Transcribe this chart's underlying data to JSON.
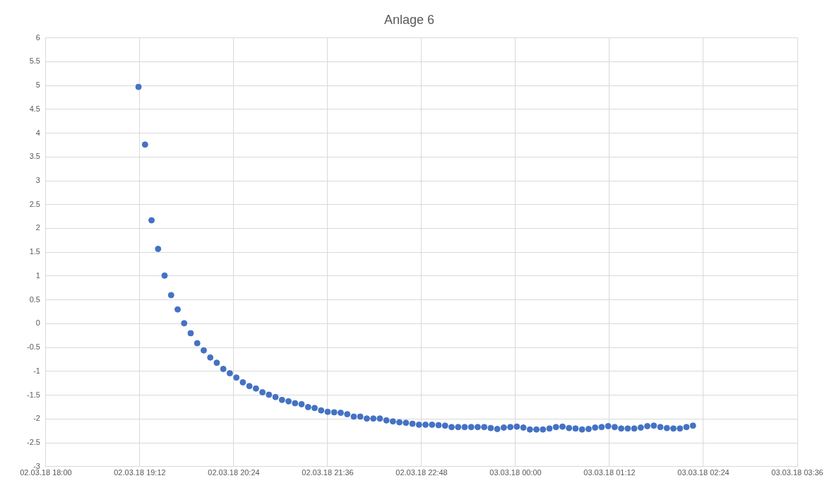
{
  "chart_data": {
    "type": "scatter",
    "title": "Anlage 6",
    "color": "#4472c4",
    "marker": "circle",
    "grid": true,
    "legend": false,
    "x": [
      "--03-02T19:11",
      "--03-02T19:16",
      "--03-02T19:21",
      "--03-02T19:26",
      "--03-02T19:31",
      "--03-02T19:36",
      "--03-02T19:41",
      "--03-02T19:46",
      "--03-02T19:51",
      "--03-02T19:56",
      "--03-02T20:01",
      "--03-02T20:06",
      "--03-02T20:11",
      "--03-02T20:16",
      "--03-02T20:21",
      "--03-02T20:26",
      "--03-02T20:31",
      "--03-02T20:36",
      "--03-02T20:41",
      "--03-02T20:46",
      "--03-02T20:51",
      "--03-02T20:56",
      "--03-02T21:01",
      "--03-02T21:06",
      "--03-02T21:11",
      "--03-02T21:16",
      "--03-02T21:21",
      "--03-02T21:26",
      "--03-02T21:31",
      "--03-02T21:36",
      "--03-02T21:41",
      "--03-02T21:46",
      "--03-02T21:51",
      "--03-02T21:56",
      "--03-02T22:01",
      "--03-02T22:06",
      "--03-02T22:11",
      "--03-02T22:16",
      "--03-02T22:21",
      "--03-02T22:26",
      "--03-02T22:31",
      "--03-02T22:36",
      "--03-02T22:41",
      "--03-02T22:46",
      "--03-02T22:51",
      "--03-02T22:56",
      "--03-02T23:01",
      "--03-02T23:06",
      "--03-02T23:11",
      "--03-02T23:16",
      "--03-02T23:21",
      "--03-02T23:26",
      "--03-02T23:31",
      "--03-02T23:36",
      "--03-02T23:41",
      "--03-02T23:46",
      "--03-02T23:51",
      "--03-02T23:56",
      "--03-03T00:01",
      "--03-03T00:06",
      "--03-03T00:11",
      "--03-03T00:16",
      "--03-03T00:21",
      "--03-03T00:26",
      "--03-03T00:31",
      "--03-03T00:36",
      "--03-03T00:41",
      "--03-03T00:46",
      "--03-03T00:51",
      "--03-03T00:56",
      "--03-03T01:01",
      "--03-03T01:06",
      "--03-03T01:11",
      "--03-03T01:16",
      "--03-03T01:21",
      "--03-03T01:26",
      "--03-03T01:31",
      "--03-03T01:36",
      "--03-03T01:41",
      "--03-03T01:46",
      "--03-03T01:51",
      "--03-03T01:56",
      "--03-03T02:01",
      "--03-03T02:06",
      "--03-03T02:11",
      "--03-03T02:16"
    ],
    "values": [
      4.97,
      3.76,
      2.17,
      1.57,
      1.01,
      0.6,
      0.3,
      0.01,
      -0.2,
      -0.41,
      -0.56,
      -0.71,
      -0.82,
      -0.95,
      -1.04,
      -1.13,
      -1.23,
      -1.31,
      -1.36,
      -1.44,
      -1.49,
      -1.54,
      -1.6,
      -1.63,
      -1.67,
      -1.69,
      -1.75,
      -1.77,
      -1.82,
      -1.85,
      -1.86,
      -1.87,
      -1.9,
      -1.95,
      -1.95,
      -1.99,
      -1.99,
      -1.99,
      -2.03,
      -2.05,
      -2.07,
      -2.08,
      -2.1,
      -2.12,
      -2.12,
      -2.12,
      -2.13,
      -2.14,
      -2.17,
      -2.17,
      -2.17,
      -2.17,
      -2.17,
      -2.17,
      -2.19,
      -2.21,
      -2.18,
      -2.17,
      -2.16,
      -2.18,
      -2.22,
      -2.22,
      -2.22,
      -2.2,
      -2.17,
      -2.16,
      -2.19,
      -2.2,
      -2.22,
      -2.21,
      -2.18,
      -2.17,
      -2.15,
      -2.17,
      -2.2,
      -2.2,
      -2.2,
      -2.18,
      -2.15,
      -2.14,
      -2.17,
      -2.19,
      -2.2,
      -2.2,
      -2.17,
      -2.14
    ],
    "xlim": [
      "--03-02T18:00",
      "--03-03T03:36"
    ],
    "xticks": [
      {
        "value": "--03-02T18:00",
        "label": "02.03.18 18:00"
      },
      {
        "value": "--03-02T19:12",
        "label": "02.03.18 19:12"
      },
      {
        "value": "--03-02T20:24",
        "label": "02.03.18 20:24"
      },
      {
        "value": "--03-02T21:36",
        "label": "02.03.18 21:36"
      },
      {
        "value": "--03-02T22:48",
        "label": "02.03.18 22:48"
      },
      {
        "value": "--03-03T00:00",
        "label": "03.03.18 00:00"
      },
      {
        "value": "--03-03T01:12",
        "label": "03.03.18 01:12"
      },
      {
        "value": "--03-03T02:24",
        "label": "03.03.18 02:24"
      },
      {
        "value": "--03-03T03:36",
        "label": "03.03.18 03:36"
      }
    ],
    "ylim": [
      -3,
      6
    ],
    "yticks": [
      -3,
      -2.5,
      -2,
      -1.5,
      -1,
      -0.5,
      0,
      0.5,
      1,
      1.5,
      2,
      2.5,
      3,
      3.5,
      4,
      4.5,
      5,
      5.5,
      6
    ]
  }
}
